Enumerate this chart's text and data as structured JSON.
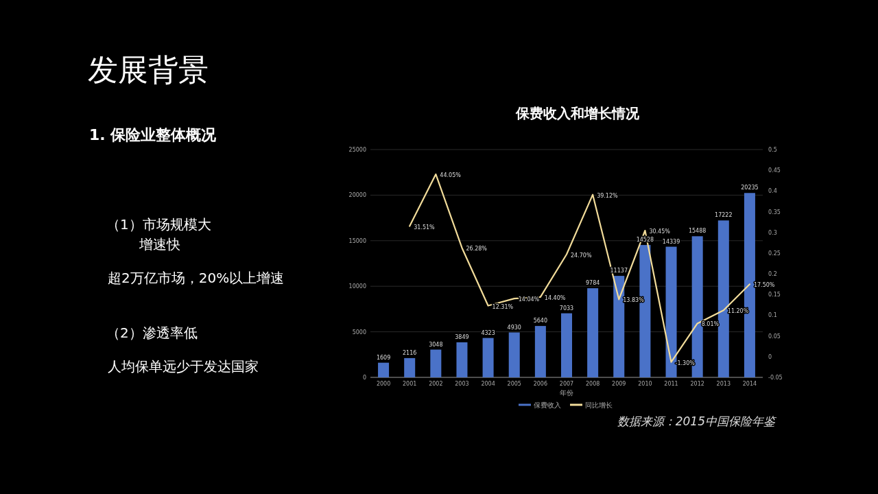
{
  "chart_data": {
    "type": "bar",
    "title": "保费收入和增长情况",
    "xlabel": "年份",
    "categories": [
      "2000",
      "2001",
      "2002",
      "2003",
      "2004",
      "2005",
      "2006",
      "2007",
      "2008",
      "2009",
      "2010",
      "2011",
      "2012",
      "2013",
      "2014"
    ],
    "series": [
      {
        "name": "保费收入",
        "color": "#4a72c8",
        "values": [
          1609,
          2116,
          3048,
          3849,
          4323,
          4930,
          5640,
          7033,
          9784,
          11137,
          14528,
          14339,
          15488,
          17222,
          20235
        ],
        "value_labels": [
          "1609",
          "2116",
          "3048",
          "3849",
          "4323",
          "4930",
          "5640",
          "7033",
          "9784",
          "11137",
          "14528",
          "14339",
          "15488",
          "17222",
          "20235"
        ]
      },
      {
        "name": "同比增长",
        "type": "line",
        "axis": "y2",
        "color": "#f2dc9a",
        "marker": "none",
        "line_style": "solid",
        "values": [
          null,
          0.3151,
          0.4405,
          0.2628,
          0.1231,
          0.1404,
          0.144,
          0.247,
          0.3912,
          0.1383,
          0.3045,
          -0.013,
          0.0801,
          0.112,
          0.175
        ],
        "value_labels": [
          null,
          "31.51%",
          "44.05%",
          "26.28%",
          "12.31%",
          "14.04%",
          "14.40%",
          "24.70%",
          "39.12%",
          "13.83%",
          "30.45%",
          "-1.30%",
          "8.01%",
          "11.20%",
          "17.50%"
        ]
      }
    ],
    "ylim": [
      0,
      25000
    ],
    "yticks": [
      0,
      5000,
      10000,
      15000,
      20000,
      25000
    ],
    "y2lim": [
      -0.05,
      0.5
    ],
    "y2ticks": [
      -0.05,
      0,
      0.05,
      0.1,
      0.15,
      0.2,
      0.25,
      0.3,
      0.35,
      0.4,
      0.45,
      0.5
    ],
    "grid": "y",
    "legend": "bottom",
    "annotations": [
      "发展背景",
      "1.  保险业整体概况",
      "（1）市场规模大",
      "增速快",
      "超2万亿市场，20%以上增速",
      "（2）渗透率低",
      "人均保单远少于发达国家",
      "数据来源：2015中国保险年鉴"
    ]
  }
}
